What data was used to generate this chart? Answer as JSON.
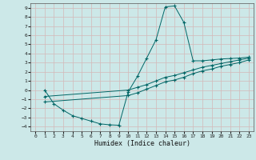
{
  "xlabel": "Humidex (Indice chaleur)",
  "bg_color": "#cce8e8",
  "line_color": "#006666",
  "grid_color": "#b0d0d0",
  "xlim": [
    -0.5,
    23.5
  ],
  "ylim": [
    -4.5,
    9.5
  ],
  "xticks": [
    0,
    1,
    2,
    3,
    4,
    5,
    6,
    7,
    8,
    9,
    10,
    11,
    12,
    13,
    14,
    15,
    16,
    17,
    18,
    19,
    20,
    21,
    22,
    23
  ],
  "yticks": [
    -4,
    -3,
    -2,
    -1,
    0,
    1,
    2,
    3,
    4,
    5,
    6,
    7,
    8,
    9
  ],
  "line1_x": [
    1,
    2,
    3,
    4,
    5,
    6,
    7,
    8,
    9,
    10,
    11,
    12,
    13,
    14,
    15,
    16,
    17,
    18,
    19,
    20,
    21,
    22,
    23
  ],
  "line1_y": [
    0.0,
    -1.5,
    -2.2,
    -2.8,
    -3.1,
    -3.4,
    -3.7,
    -3.8,
    -3.85,
    -0.2,
    1.5,
    3.5,
    5.5,
    9.1,
    9.2,
    7.4,
    3.2,
    3.2,
    3.3,
    3.4,
    3.45,
    3.5,
    3.6
  ],
  "line2_x": [
    1,
    10,
    11,
    12,
    13,
    14,
    15,
    16,
    17,
    18,
    19,
    20,
    21,
    22,
    23
  ],
  "line2_y": [
    -0.7,
    0.0,
    0.3,
    0.6,
    1.0,
    1.4,
    1.6,
    1.9,
    2.2,
    2.5,
    2.7,
    2.9,
    3.1,
    3.3,
    3.5
  ],
  "line3_x": [
    1,
    10,
    11,
    12,
    13,
    14,
    15,
    16,
    17,
    18,
    19,
    20,
    21,
    22,
    23
  ],
  "line3_y": [
    -1.3,
    -0.6,
    -0.3,
    0.1,
    0.5,
    0.9,
    1.1,
    1.4,
    1.8,
    2.1,
    2.3,
    2.6,
    2.8,
    3.0,
    3.3
  ]
}
